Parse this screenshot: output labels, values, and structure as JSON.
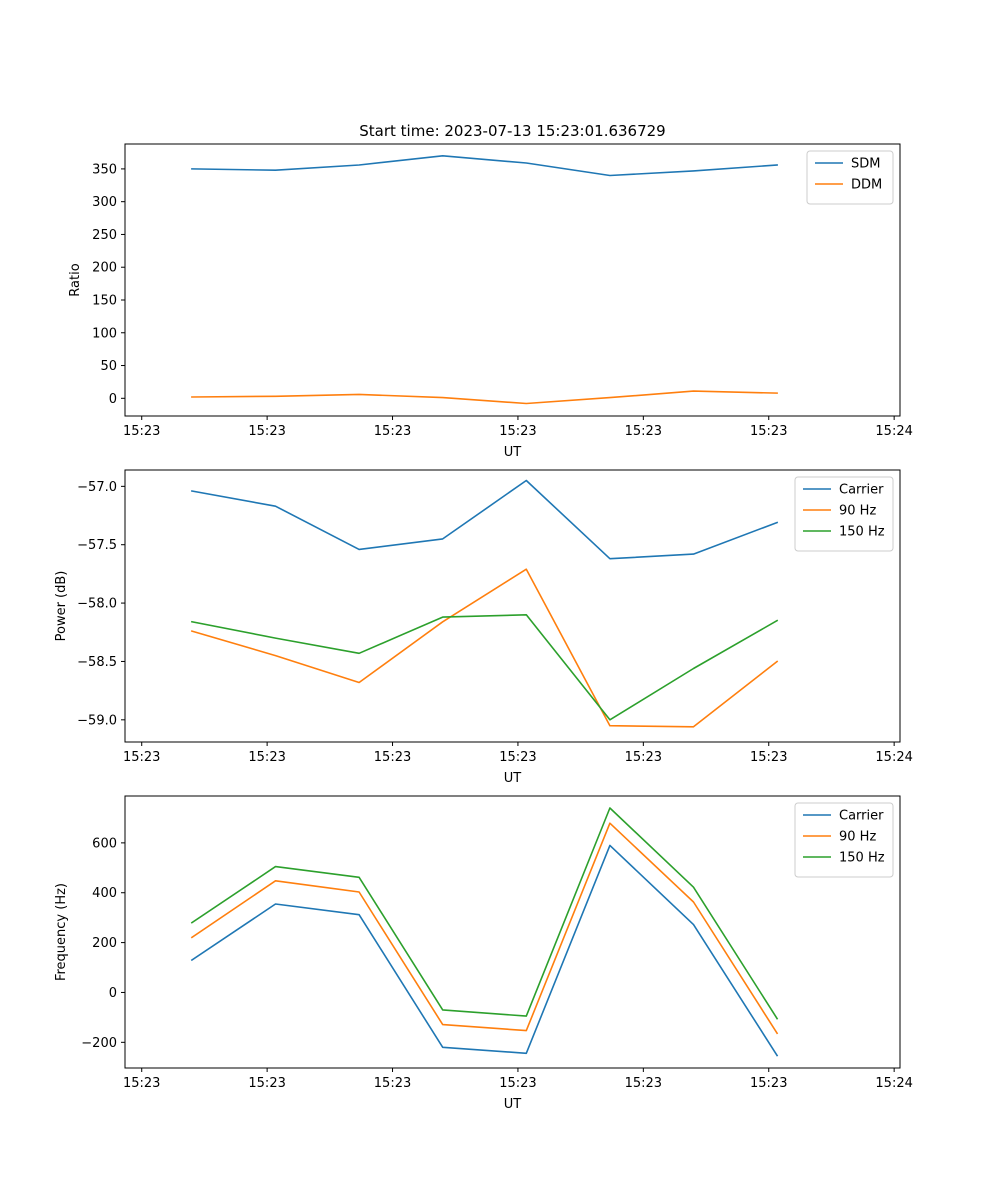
{
  "chart_data": [
    {
      "type": "line",
      "title": "Start time: 2023-07-13 15:23:01.636729",
      "xlabel": "UT",
      "ylabel": "Ratio",
      "x": [
        1,
        2,
        3,
        4,
        5,
        6,
        7,
        8
      ],
      "xlim": [
        0.2,
        9.47
      ],
      "xticks": [
        0.4,
        1.9,
        3.4,
        4.9,
        6.4,
        7.9,
        9.4
      ],
      "xtick_labels": [
        "15:23",
        "15:23",
        "15:23",
        "15:23",
        "15:23",
        "15:23",
        "15:24"
      ],
      "ylim": [
        -27,
        388
      ],
      "yticks": [
        0,
        50,
        100,
        150,
        200,
        250,
        300,
        350
      ],
      "ytick_labels": [
        "0",
        "50",
        "100",
        "150",
        "200",
        "250",
        "300",
        "350"
      ],
      "legend_position": "top-right",
      "series": [
        {
          "name": "SDM",
          "color": "#1f77b4",
          "values": [
            350,
            348,
            356,
            370,
            359,
            340,
            347,
            356
          ]
        },
        {
          "name": "DDM",
          "color": "#ff7f0e",
          "values": [
            2,
            3,
            6,
            1,
            -8,
            1,
            11,
            8
          ]
        }
      ]
    },
    {
      "type": "line",
      "xlabel": "UT",
      "ylabel": "Power (dB)",
      "x": [
        1,
        2,
        3,
        4,
        5,
        6,
        7,
        8
      ],
      "xlim": [
        0.2,
        9.47
      ],
      "xticks": [
        0.4,
        1.9,
        3.4,
        4.9,
        6.4,
        7.9,
        9.4
      ],
      "xtick_labels": [
        "15:23",
        "15:23",
        "15:23",
        "15:23",
        "15:23",
        "15:23",
        "15:24"
      ],
      "ylim": [
        -59.19,
        -56.86
      ],
      "yticks": [
        -59.0,
        -58.5,
        -58.0,
        -57.5,
        -57.0
      ],
      "ytick_labels": [
        "−59.0",
        "−58.5",
        "−58.0",
        "−57.5",
        "−57.0"
      ],
      "legend_position": "top-right",
      "series": [
        {
          "name": "Carrier",
          "color": "#1f77b4",
          "values": [
            -57.04,
            -57.17,
            -57.54,
            -57.45,
            -56.95,
            -57.62,
            -57.58,
            -57.31
          ]
        },
        {
          "name": "90 Hz",
          "color": "#ff7f0e",
          "values": [
            -58.24,
            -58.45,
            -58.68,
            -58.16,
            -57.71,
            -59.05,
            -59.06,
            -58.5
          ]
        },
        {
          "name": "150 Hz",
          "color": "#2ca02c",
          "values": [
            -58.16,
            -58.3,
            -58.43,
            -58.12,
            -58.1,
            -59.0,
            -58.56,
            -58.15
          ]
        }
      ]
    },
    {
      "type": "line",
      "xlabel": "UT",
      "ylabel": "Frequency (Hz)",
      "x": [
        1,
        2,
        3,
        4,
        5,
        6,
        7,
        8
      ],
      "xlim": [
        0.2,
        9.47
      ],
      "xticks": [
        0.4,
        1.9,
        3.4,
        4.9,
        6.4,
        7.9,
        9.4
      ],
      "xtick_labels": [
        "15:23",
        "15:23",
        "15:23",
        "15:23",
        "15:23",
        "15:23",
        "15:24"
      ],
      "ylim": [
        -303,
        788
      ],
      "yticks": [
        -200,
        0,
        200,
        400,
        600
      ],
      "ytick_labels": [
        "−200",
        "0",
        "200",
        "400",
        "600"
      ],
      "legend_position": "top-right",
      "series": [
        {
          "name": "Carrier",
          "color": "#1f77b4",
          "values": [
            130,
            355,
            312,
            -220,
            -244,
            590,
            272,
            -253
          ]
        },
        {
          "name": "90 Hz",
          "color": "#ff7f0e",
          "values": [
            221,
            448,
            403,
            -129,
            -153,
            679,
            363,
            -164
          ]
        },
        {
          "name": "150 Hz",
          "color": "#2ca02c",
          "values": [
            280,
            505,
            462,
            -70,
            -95,
            740,
            422,
            -105
          ]
        }
      ]
    }
  ]
}
